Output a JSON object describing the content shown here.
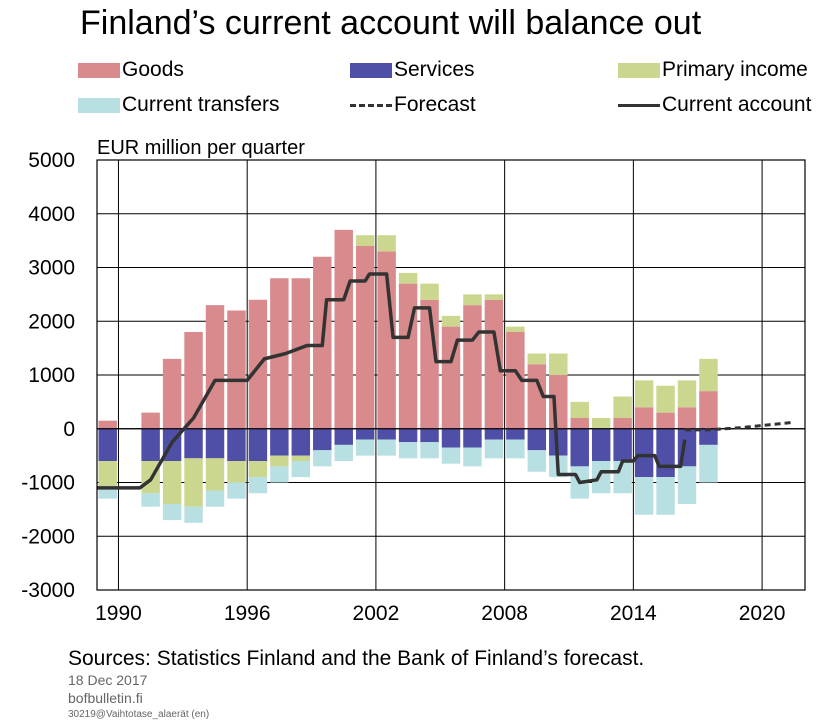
{
  "title": "Finland’s current account will balance out",
  "colors": {
    "goods": "#d88a8c",
    "services": "#4f4fa8",
    "primary_income": "#cbd68e",
    "current_transfers": "#b8dfe2",
    "line": "#333333"
  },
  "chart_data": {
    "type": "bar",
    "ylabel": "EUR million per quarter",
    "ylim": [
      -3000,
      5000
    ],
    "yticks": [
      5000,
      4000,
      3000,
      2000,
      1000,
      0,
      -1000,
      -2000,
      -3000
    ],
    "xlim": [
      1989,
      2022
    ],
    "xticks": [
      1990,
      1996,
      2002,
      2008,
      2014,
      2020
    ],
    "grid": true,
    "legend_position": "top",
    "series_labels": [
      "Goods",
      "Services",
      "Primary income",
      "Current transfers",
      "Forecast",
      "Current account"
    ],
    "x": [
      1989,
      1991,
      1992,
      1993,
      1994,
      1995,
      1996,
      1997,
      1998,
      1999,
      2000,
      2001,
      2002,
      2003,
      2004,
      2005,
      2006,
      2007,
      2008,
      2009,
      2010,
      2011,
      2012,
      2013,
      2014,
      2015,
      2016,
      2017
    ],
    "goods": [
      150,
      300,
      1300,
      1800,
      2300,
      2200,
      2400,
      2800,
      2800,
      3200,
      3700,
      3400,
      3300,
      2700,
      2400,
      1900,
      2300,
      2400,
      1800,
      1200,
      1000,
      200,
      0,
      200,
      400,
      300,
      400,
      700
    ],
    "services": [
      -600,
      -600,
      -600,
      -550,
      -550,
      -600,
      -600,
      -500,
      -500,
      -400,
      -300,
      -200,
      -200,
      -250,
      -250,
      -350,
      -350,
      -200,
      -200,
      -400,
      -500,
      -700,
      -600,
      -600,
      -900,
      -900,
      -700,
      -300
    ],
    "primary_income": [
      -500,
      -600,
      -800,
      -900,
      -600,
      -400,
      -300,
      -200,
      -100,
      0,
      0,
      200,
      300,
      200,
      300,
      200,
      200,
      100,
      100,
      200,
      400,
      300,
      200,
      400,
      500,
      500,
      500,
      600
    ],
    "current_transfers": [
      -200,
      -250,
      -300,
      -300,
      -300,
      -300,
      -300,
      -300,
      -300,
      -300,
      -300,
      -300,
      -300,
      -300,
      -300,
      -300,
      -350,
      -350,
      -350,
      -400,
      -400,
      -600,
      -600,
      -600,
      -700,
      -700,
      -700,
      -700
    ],
    "current_account": [
      [
        1989,
        -1100
      ],
      [
        1991,
        -1100
      ],
      [
        1991.5,
        -950
      ],
      [
        1992.5,
        -250
      ],
      [
        1993.5,
        200
      ],
      [
        1994.5,
        900
      ],
      [
        1996,
        900
      ],
      [
        1996.8,
        1300
      ],
      [
        1997.8,
        1400
      ],
      [
        1998.8,
        1550
      ],
      [
        1999.5,
        1550
      ],
      [
        1999.7,
        2400
      ],
      [
        2000.5,
        2400
      ],
      [
        2000.8,
        2750
      ],
      [
        2001.5,
        2750
      ],
      [
        2001.7,
        2880
      ],
      [
        2002.5,
        2880
      ],
      [
        2002.8,
        1700
      ],
      [
        2003.5,
        1700
      ],
      [
        2003.8,
        2250
      ],
      [
        2004.5,
        2250
      ],
      [
        2004.8,
        1250
      ],
      [
        2005.5,
        1250
      ],
      [
        2005.8,
        1650
      ],
      [
        2006.5,
        1650
      ],
      [
        2006.8,
        1800
      ],
      [
        2007.5,
        1800
      ],
      [
        2007.8,
        1080
      ],
      [
        2008.5,
        1080
      ],
      [
        2008.8,
        900
      ],
      [
        2009.5,
        900
      ],
      [
        2009.8,
        600
      ],
      [
        2010.3,
        600
      ],
      [
        2010.5,
        -850
      ],
      [
        2011.3,
        -850
      ],
      [
        2011.5,
        -1000
      ],
      [
        2012.3,
        -950
      ],
      [
        2012.5,
        -800
      ],
      [
        2013.3,
        -800
      ],
      [
        2013.5,
        -600
      ],
      [
        2014,
        -600
      ],
      [
        2014.2,
        -500
      ],
      [
        2015,
        -500
      ],
      [
        2015.2,
        -700
      ],
      [
        2016.2,
        -700
      ],
      [
        2016.4,
        -200
      ]
    ],
    "forecast": [
      [
        2016.4,
        -20
      ],
      [
        2017.5,
        -20
      ],
      [
        2019,
        20
      ],
      [
        2020.5,
        80
      ],
      [
        2021.5,
        120
      ]
    ]
  },
  "footer": {
    "sources": "Sources: Statistics Finland and the Bank of Finland’s forecast.",
    "date": "18 Dec 2017",
    "site": "bofbulletin.fi",
    "code": "30219@Vaihtotase_alaerät  (en)"
  }
}
